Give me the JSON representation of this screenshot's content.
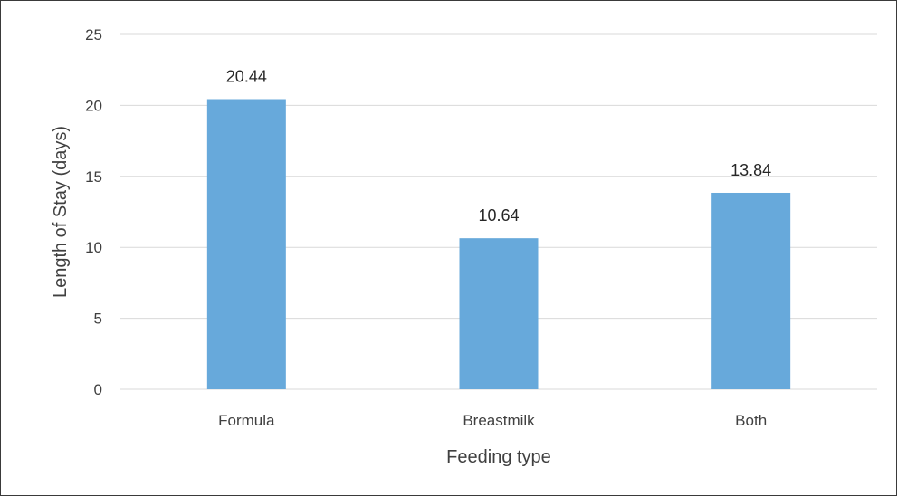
{
  "chart_data": {
    "type": "bar",
    "categories": [
      "Formula",
      "Breastmilk",
      "Both"
    ],
    "values": [
      20.44,
      10.64,
      13.84
    ],
    "data_labels": [
      "20.44",
      "10.64",
      "13.84"
    ],
    "title": "",
    "xlabel": "Feeding type",
    "ylabel": "Length of Stay (days)",
    "ylim": [
      0,
      25
    ],
    "yticks": [
      0,
      5,
      10,
      15,
      20,
      25
    ],
    "ytick_labels": [
      "0",
      "5",
      "10",
      "15",
      "20",
      "25"
    ],
    "grid": true,
    "legend": "none",
    "bar_color": "#67a9db",
    "grid_color": "#d9d9d9"
  }
}
